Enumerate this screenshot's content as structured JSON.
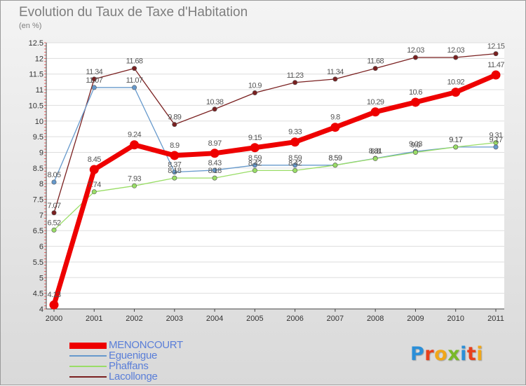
{
  "title": "Evolution du Taux de Taxe d'Habitation",
  "subtitle": "(en %)",
  "logo": {
    "text": "Proxiti",
    "letters": [
      {
        "ch": "P",
        "color": "#2b8fd8"
      },
      {
        "ch": "r",
        "color": "#e8401c"
      },
      {
        "ch": "o",
        "color": "#f0a71a"
      },
      {
        "ch": "x",
        "color": "#79b928"
      },
      {
        "ch": "i",
        "color": "#2b8fd8"
      },
      {
        "ch": "t",
        "color": "#e8401c"
      },
      {
        "ch": "i",
        "color": "#f0a71a"
      }
    ]
  },
  "chart_data": {
    "type": "line",
    "title": "Evolution du Taux de Taxe d'Habitation",
    "ylabel": "(en %)",
    "xlabel": "",
    "x": [
      "2000",
      "2001",
      "2002",
      "2003",
      "2004",
      "2005",
      "2006",
      "2007",
      "2008",
      "2009",
      "2010",
      "2011"
    ],
    "ylim": [
      4,
      12.5
    ],
    "yticks": [
      "4",
      "4.5",
      "5",
      "5.5",
      "6",
      "6.5",
      "7",
      "7.5",
      "8",
      "8.5",
      "9",
      "9.5",
      "10",
      "10.5",
      "11",
      "11.5",
      "12",
      "12.5"
    ],
    "grid": "horizontal",
    "legend_position": "bottom-left",
    "series": [
      {
        "name": "MENONCOURT",
        "color": "#ee0000",
        "width": 7,
        "values": [
          4.13,
          8.45,
          9.24,
          8.9,
          8.97,
          9.15,
          9.33,
          9.8,
          10.29,
          10.6,
          10.92,
          11.47
        ],
        "labels": [
          "4.13",
          "8.45",
          "9.24",
          "8.9",
          "8.97",
          "9.15",
          "9.33",
          "9.8",
          "10.29",
          "10.6",
          "10.92",
          "11.47"
        ]
      },
      {
        "name": "Eguenigue",
        "color": "#6699cc",
        "width": 1.3,
        "values": [
          8.05,
          11.07,
          11.07,
          8.37,
          8.43,
          8.59,
          8.59,
          8.59,
          8.81,
          9.03,
          9.17,
          9.17
        ],
        "labels": [
          "8.05",
          "11.07",
          "11.07",
          "8.37",
          "8.43",
          "8.59",
          "8.59",
          "8.59",
          "8.81",
          "9.03",
          "9.17",
          "9.17"
        ]
      },
      {
        "name": "Phaffans",
        "color": "#99dd66",
        "width": 1.3,
        "values": [
          6.52,
          7.74,
          7.93,
          8.18,
          8.18,
          8.42,
          8.42,
          8.59,
          8.8,
          9.0,
          9.17,
          9.31
        ],
        "labels": [
          "6.52",
          "7.74",
          "7.93",
          "8.18",
          "8.18",
          "8.42",
          "8.42",
          "8.59",
          "8.8",
          "9.0",
          "9.17",
          "9.31"
        ]
      },
      {
        "name": "Lacollonge",
        "color": "#7a2020",
        "width": 1.3,
        "values": [
          7.07,
          11.34,
          11.68,
          9.89,
          10.38,
          10.9,
          11.23,
          11.34,
          11.68,
          12.03,
          12.03,
          12.15
        ],
        "labels": [
          "7.07",
          "11.34",
          "11.68",
          "9.89",
          "10.38",
          "10.9",
          "11.23",
          "11.34",
          "11.68",
          "12.03",
          "12.03",
          "12.15"
        ]
      }
    ]
  }
}
